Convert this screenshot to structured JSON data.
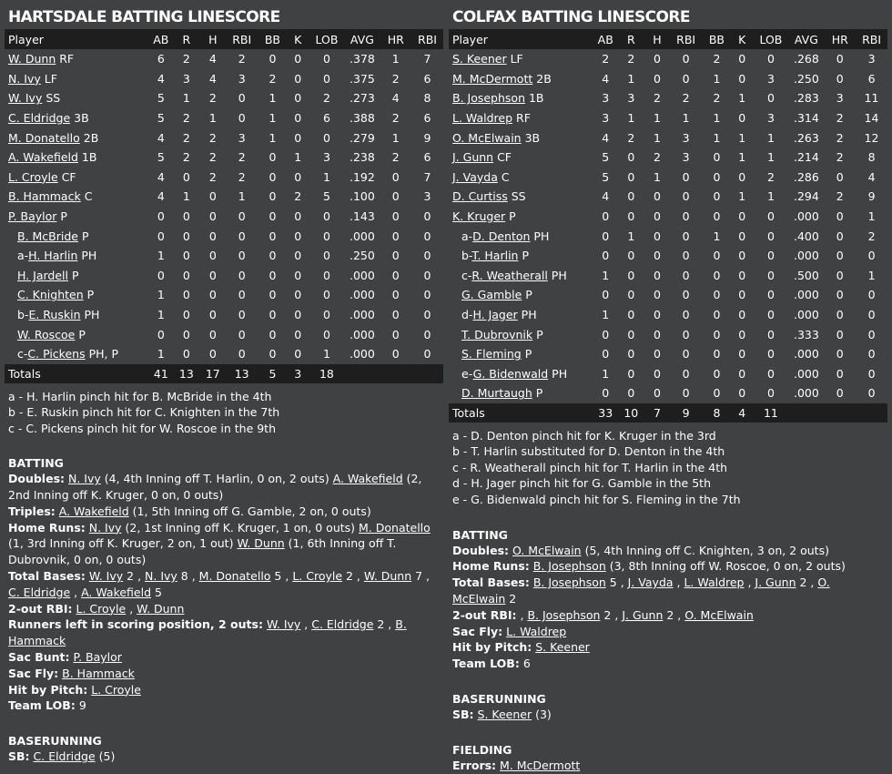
{
  "columns": [
    "Player",
    "AB",
    "R",
    "H",
    "RBI",
    "BB",
    "K",
    "LOB",
    "AVG",
    "HR",
    "RBI"
  ],
  "home": {
    "title": "HARTSDALE BATTING LINESCORE",
    "rows": [
      {
        "sub": "",
        "name": "W. Dunn",
        "pos": "RF",
        "ab": "6",
        "r": "2",
        "h": "4",
        "rbi": "2",
        "bb": "0",
        "k": "0",
        "lob": "0",
        "avg": ".378",
        "hr": "1",
        "rbi2": "7"
      },
      {
        "sub": "",
        "name": "N. Ivy",
        "pos": "LF",
        "ab": "4",
        "r": "3",
        "h": "4",
        "rbi": "3",
        "bb": "2",
        "k": "0",
        "lob": "0",
        "avg": ".375",
        "hr": "2",
        "rbi2": "6"
      },
      {
        "sub": "",
        "name": "W. Ivy",
        "pos": "SS",
        "ab": "5",
        "r": "1",
        "h": "2",
        "rbi": "0",
        "bb": "1",
        "k": "0",
        "lob": "2",
        "avg": ".273",
        "hr": "4",
        "rbi2": "8"
      },
      {
        "sub": "",
        "name": "C. Eldridge",
        "pos": "3B",
        "ab": "5",
        "r": "2",
        "h": "1",
        "rbi": "0",
        "bb": "1",
        "k": "0",
        "lob": "6",
        "avg": ".388",
        "hr": "2",
        "rbi2": "6"
      },
      {
        "sub": "",
        "name": "M. Donatello",
        "pos": "2B",
        "ab": "4",
        "r": "2",
        "h": "2",
        "rbi": "3",
        "bb": "1",
        "k": "0",
        "lob": "0",
        "avg": ".279",
        "hr": "1",
        "rbi2": "9"
      },
      {
        "sub": "",
        "name": "A. Wakefield",
        "pos": "1B",
        "ab": "5",
        "r": "2",
        "h": "2",
        "rbi": "2",
        "bb": "0",
        "k": "1",
        "lob": "3",
        "avg": ".238",
        "hr": "2",
        "rbi2": "6"
      },
      {
        "sub": "",
        "name": "L. Croyle",
        "pos": "CF",
        "ab": "4",
        "r": "0",
        "h": "2",
        "rbi": "2",
        "bb": "0",
        "k": "0",
        "lob": "1",
        "avg": ".192",
        "hr": "0",
        "rbi2": "7"
      },
      {
        "sub": "",
        "name": "B. Hammack",
        "pos": "C",
        "ab": "4",
        "r": "1",
        "h": "0",
        "rbi": "1",
        "bb": "0",
        "k": "2",
        "lob": "5",
        "avg": ".100",
        "hr": "0",
        "rbi2": "3"
      },
      {
        "sub": "",
        "name": "P. Baylor",
        "pos": "P",
        "ab": "0",
        "r": "0",
        "h": "0",
        "rbi": "0",
        "bb": "0",
        "k": "0",
        "lob": "0",
        "avg": ".143",
        "hr": "0",
        "rbi2": "0"
      },
      {
        "sub": "",
        "name": "B. McBride",
        "pos": "P",
        "ind": true,
        "ab": "0",
        "r": "0",
        "h": "0",
        "rbi": "0",
        "bb": "0",
        "k": "0",
        "lob": "0",
        "avg": ".000",
        "hr": "0",
        "rbi2": "0"
      },
      {
        "sub": "a-",
        "name": "H. Harlin",
        "pos": "PH",
        "ind": true,
        "ab": "1",
        "r": "0",
        "h": "0",
        "rbi": "0",
        "bb": "0",
        "k": "0",
        "lob": "0",
        "avg": ".250",
        "hr": "0",
        "rbi2": "0"
      },
      {
        "sub": "",
        "name": "H. Jardell",
        "pos": "P",
        "ind": true,
        "ab": "0",
        "r": "0",
        "h": "0",
        "rbi": "0",
        "bb": "0",
        "k": "0",
        "lob": "0",
        "avg": ".000",
        "hr": "0",
        "rbi2": "0"
      },
      {
        "sub": "",
        "name": "C. Knighten",
        "pos": "P",
        "ind": true,
        "ab": "1",
        "r": "0",
        "h": "0",
        "rbi": "0",
        "bb": "0",
        "k": "0",
        "lob": "0",
        "avg": ".000",
        "hr": "0",
        "rbi2": "0"
      },
      {
        "sub": "b-",
        "name": "E. Ruskin",
        "pos": "PH",
        "ind": true,
        "ab": "1",
        "r": "0",
        "h": "0",
        "rbi": "0",
        "bb": "0",
        "k": "0",
        "lob": "0",
        "avg": ".000",
        "hr": "0",
        "rbi2": "0"
      },
      {
        "sub": "",
        "name": "W. Roscoe",
        "pos": "P",
        "ind": true,
        "ab": "0",
        "r": "0",
        "h": "0",
        "rbi": "0",
        "bb": "0",
        "k": "0",
        "lob": "0",
        "avg": ".000",
        "hr": "0",
        "rbi2": "0"
      },
      {
        "sub": "c-",
        "name": "C. Pickens",
        "pos": "PH, P",
        "ind": true,
        "ab": "1",
        "r": "0",
        "h": "0",
        "rbi": "0",
        "bb": "0",
        "k": "0",
        "lob": "1",
        "avg": ".000",
        "hr": "0",
        "rbi2": "0"
      }
    ],
    "totals": {
      "label": "Totals",
      "ab": "41",
      "r": "13",
      "h": "17",
      "rbi": "13",
      "bb": "5",
      "k": "3",
      "lob": "18",
      "avg": "",
      "hr": "",
      "rbi2": ""
    },
    "notes": [
      "a - H. Harlin pinch hit for B. McBride in the 4th",
      "b - E. Ruskin pinch hit for C. Knighten in the 7th",
      "c - C. Pickens pinch hit for W. Roscoe in the 9th"
    ],
    "sections": [
      {
        "heading": "BATTING",
        "lines": [
          {
            "label": "Doubles:",
            "parts": [
              {
                "link": "N. Ivy"
              },
              {
                "text": " (4, 4th Inning off T. Harlin, 0 on, 2 outs) "
              },
              {
                "link": "A. Wakefield"
              },
              {
                "text": " (2, 2nd Inning off K. Kruger, 0 on, 0 outs)"
              }
            ]
          },
          {
            "label": "Triples:",
            "parts": [
              {
                "link": "A. Wakefield"
              },
              {
                "text": " (1, 5th Inning off G. Gamble, 2 on, 0 outs)"
              }
            ]
          },
          {
            "label": "Home Runs:",
            "parts": [
              {
                "link": "N. Ivy"
              },
              {
                "text": " (2, 1st Inning off K. Kruger, 1 on, 0 outs) "
              },
              {
                "link": "M. Donatello"
              },
              {
                "text": " (1, 3rd Inning off K. Kruger, 2 on, 1 out) "
              },
              {
                "link": "W. Dunn"
              },
              {
                "text": " (1, 6th Inning off T. Dubrovnik, 0 on, 0 outs)"
              }
            ]
          },
          {
            "label": "Total Bases:",
            "parts": [
              {
                "link": "W. Ivy"
              },
              {
                "text": " 2 , "
              },
              {
                "link": "N. Ivy"
              },
              {
                "text": " 8 , "
              },
              {
                "link": "M. Donatello"
              },
              {
                "text": " 5 , "
              },
              {
                "link": "L. Croyle"
              },
              {
                "text": " 2 , "
              },
              {
                "link": "W. Dunn"
              },
              {
                "text": " 7 , "
              },
              {
                "link": "C. Eldridge"
              },
              {
                "text": " , "
              },
              {
                "link": "A. Wakefield"
              },
              {
                "text": " 5"
              }
            ]
          },
          {
            "label": "2-out RBI:",
            "parts": [
              {
                "link": "L. Croyle"
              },
              {
                "text": " , "
              },
              {
                "link": "W. Dunn"
              }
            ]
          },
          {
            "label": "Runners left in scoring position, 2 outs:",
            "parts": [
              {
                "link": "W. Ivy"
              },
              {
                "text": " , "
              },
              {
                "link": "C. Eldridge"
              },
              {
                "text": " 2 , "
              },
              {
                "link": "B. Hammack"
              }
            ]
          },
          {
            "label": "Sac Bunt:",
            "parts": [
              {
                "link": "P. Baylor"
              }
            ]
          },
          {
            "label": "Sac Fly:",
            "parts": [
              {
                "link": "B. Hammack"
              }
            ]
          },
          {
            "label": "Hit by Pitch:",
            "parts": [
              {
                "link": "L. Croyle"
              }
            ]
          },
          {
            "label": "Team LOB:",
            "parts": [
              {
                "text": "9"
              }
            ]
          }
        ]
      },
      {
        "heading": "BASERUNNING",
        "lines": [
          {
            "label": "SB:",
            "parts": [
              {
                "link": "C. Eldridge"
              },
              {
                "text": " (5)"
              }
            ]
          }
        ]
      }
    ]
  },
  "away": {
    "title": "COLFAX BATTING LINESCORE",
    "rows": [
      {
        "sub": "",
        "name": "S. Keener",
        "pos": "LF",
        "ab": "2",
        "r": "2",
        "h": "0",
        "rbi": "0",
        "bb": "2",
        "k": "0",
        "lob": "0",
        "avg": ".268",
        "hr": "0",
        "rbi2": "3"
      },
      {
        "sub": "",
        "name": "M. McDermott",
        "pos": "2B",
        "ab": "4",
        "r": "1",
        "h": "0",
        "rbi": "0",
        "bb": "1",
        "k": "0",
        "lob": "3",
        "avg": ".250",
        "hr": "0",
        "rbi2": "6"
      },
      {
        "sub": "",
        "name": "B. Josephson",
        "pos": "1B",
        "ab": "3",
        "r": "3",
        "h": "2",
        "rbi": "2",
        "bb": "2",
        "k": "1",
        "lob": "0",
        "avg": ".283",
        "hr": "3",
        "rbi2": "11"
      },
      {
        "sub": "",
        "name": "L. Waldrep",
        "pos": "RF",
        "ab": "3",
        "r": "1",
        "h": "1",
        "rbi": "1",
        "bb": "1",
        "k": "0",
        "lob": "3",
        "avg": ".314",
        "hr": "2",
        "rbi2": "14"
      },
      {
        "sub": "",
        "name": "O. McElwain",
        "pos": "3B",
        "ab": "4",
        "r": "2",
        "h": "1",
        "rbi": "3",
        "bb": "1",
        "k": "1",
        "lob": "1",
        "avg": ".263",
        "hr": "2",
        "rbi2": "12"
      },
      {
        "sub": "",
        "name": "J. Gunn",
        "pos": "CF",
        "ab": "5",
        "r": "0",
        "h": "2",
        "rbi": "3",
        "bb": "0",
        "k": "1",
        "lob": "1",
        "avg": ".214",
        "hr": "2",
        "rbi2": "8"
      },
      {
        "sub": "",
        "name": "J. Vayda",
        "pos": "C",
        "ab": "5",
        "r": "0",
        "h": "1",
        "rbi": "0",
        "bb": "0",
        "k": "0",
        "lob": "2",
        "avg": ".286",
        "hr": "0",
        "rbi2": "4"
      },
      {
        "sub": "",
        "name": "D. Curtiss",
        "pos": "SS",
        "ab": "4",
        "r": "0",
        "h": "0",
        "rbi": "0",
        "bb": "0",
        "k": "1",
        "lob": "1",
        "avg": ".294",
        "hr": "2",
        "rbi2": "9"
      },
      {
        "sub": "",
        "name": "K. Kruger",
        "pos": "P",
        "ab": "0",
        "r": "0",
        "h": "0",
        "rbi": "0",
        "bb": "0",
        "k": "0",
        "lob": "0",
        "avg": ".000",
        "hr": "0",
        "rbi2": "1"
      },
      {
        "sub": "a-",
        "name": "D. Denton",
        "pos": "PH",
        "ind": true,
        "ab": "0",
        "r": "1",
        "h": "0",
        "rbi": "0",
        "bb": "1",
        "k": "0",
        "lob": "0",
        "avg": ".400",
        "hr": "0",
        "rbi2": "2"
      },
      {
        "sub": "b-",
        "name": "T. Harlin",
        "pos": "P",
        "ind": true,
        "ab": "0",
        "r": "0",
        "h": "0",
        "rbi": "0",
        "bb": "0",
        "k": "0",
        "lob": "0",
        "avg": ".000",
        "hr": "0",
        "rbi2": "0"
      },
      {
        "sub": "c-",
        "name": "R. Weatherall",
        "pos": "PH",
        "ind": true,
        "ab": "1",
        "r": "0",
        "h": "0",
        "rbi": "0",
        "bb": "0",
        "k": "0",
        "lob": "0",
        "avg": ".500",
        "hr": "0",
        "rbi2": "1"
      },
      {
        "sub": "",
        "name": "G. Gamble",
        "pos": "P",
        "ind": true,
        "ab": "0",
        "r": "0",
        "h": "0",
        "rbi": "0",
        "bb": "0",
        "k": "0",
        "lob": "0",
        "avg": ".000",
        "hr": "0",
        "rbi2": "0"
      },
      {
        "sub": "d-",
        "name": "H. Jager",
        "pos": "PH",
        "ind": true,
        "ab": "1",
        "r": "0",
        "h": "0",
        "rbi": "0",
        "bb": "0",
        "k": "0",
        "lob": "0",
        "avg": ".000",
        "hr": "0",
        "rbi2": "0"
      },
      {
        "sub": "",
        "name": "T. Dubrovnik",
        "pos": "P",
        "ind": true,
        "ab": "0",
        "r": "0",
        "h": "0",
        "rbi": "0",
        "bb": "0",
        "k": "0",
        "lob": "0",
        "avg": ".333",
        "hr": "0",
        "rbi2": "0"
      },
      {
        "sub": "",
        "name": "S. Fleming",
        "pos": "P",
        "ind": true,
        "ab": "0",
        "r": "0",
        "h": "0",
        "rbi": "0",
        "bb": "0",
        "k": "0",
        "lob": "0",
        "avg": ".000",
        "hr": "0",
        "rbi2": "0"
      },
      {
        "sub": "e-",
        "name": "G. Bidenwald",
        "pos": "PH",
        "ind": true,
        "ab": "1",
        "r": "0",
        "h": "0",
        "rbi": "0",
        "bb": "0",
        "k": "0",
        "lob": "0",
        "avg": ".000",
        "hr": "0",
        "rbi2": "0"
      },
      {
        "sub": "",
        "name": "D. Murtaugh",
        "pos": "P",
        "ind": true,
        "ab": "0",
        "r": "0",
        "h": "0",
        "rbi": "0",
        "bb": "0",
        "k": "0",
        "lob": "0",
        "avg": ".000",
        "hr": "0",
        "rbi2": "0"
      }
    ],
    "totals": {
      "label": "Totals",
      "ab": "33",
      "r": "10",
      "h": "7",
      "rbi": "9",
      "bb": "8",
      "k": "4",
      "lob": "11",
      "avg": "",
      "hr": "",
      "rbi2": ""
    },
    "notes": [
      "a - D. Denton pinch hit for K. Kruger in the 3rd",
      "b - T. Harlin substituted for D. Denton in the 4th",
      "c - R. Weatherall pinch hit for T. Harlin in the 4th",
      "d - H. Jager pinch hit for G. Gamble in the 5th",
      "e - G. Bidenwald pinch hit for S. Fleming in the 7th"
    ],
    "sections": [
      {
        "heading": "BATTING",
        "lines": [
          {
            "label": "Doubles:",
            "parts": [
              {
                "link": "O. McElwain"
              },
              {
                "text": " (5, 4th Inning off C. Knighten, 3 on, 2 outs)"
              }
            ]
          },
          {
            "label": "Home Runs:",
            "parts": [
              {
                "link": "B. Josephson"
              },
              {
                "text": " (3, 8th Inning off W. Roscoe, 0 on, 2 outs)"
              }
            ]
          },
          {
            "label": "Total Bases:",
            "parts": [
              {
                "link": "B. Josephson"
              },
              {
                "text": " 5 , "
              },
              {
                "link": "J. Vayda"
              },
              {
                "text": " , "
              },
              {
                "link": "L. Waldrep"
              },
              {
                "text": " , "
              },
              {
                "link": "J. Gunn"
              },
              {
                "text": " 2 , "
              },
              {
                "link": "O. McElwain"
              },
              {
                "text": " 2"
              }
            ]
          },
          {
            "label": "2-out RBI:",
            "parts": [
              {
                "text": " , "
              },
              {
                "link": "B. Josephson"
              },
              {
                "text": " 2 , "
              },
              {
                "link": "J. Gunn"
              },
              {
                "text": " 2 , "
              },
              {
                "link": "O. McElwain"
              }
            ]
          },
          {
            "label": "Sac Fly:",
            "parts": [
              {
                "link": "L. Waldrep"
              }
            ]
          },
          {
            "label": "Hit by Pitch:",
            "parts": [
              {
                "link": "S. Keener"
              }
            ]
          },
          {
            "label": "Team LOB:",
            "parts": [
              {
                "text": "6"
              }
            ]
          }
        ]
      },
      {
        "heading": "BASERUNNING",
        "lines": [
          {
            "label": "SB:",
            "parts": [
              {
                "link": "S. Keener"
              },
              {
                "text": " (3)"
              }
            ]
          }
        ]
      },
      {
        "heading": "FIELDING",
        "lines": [
          {
            "label": "Errors:",
            "parts": [
              {
                "link": "M. McDermott"
              }
            ]
          }
        ]
      }
    ]
  }
}
